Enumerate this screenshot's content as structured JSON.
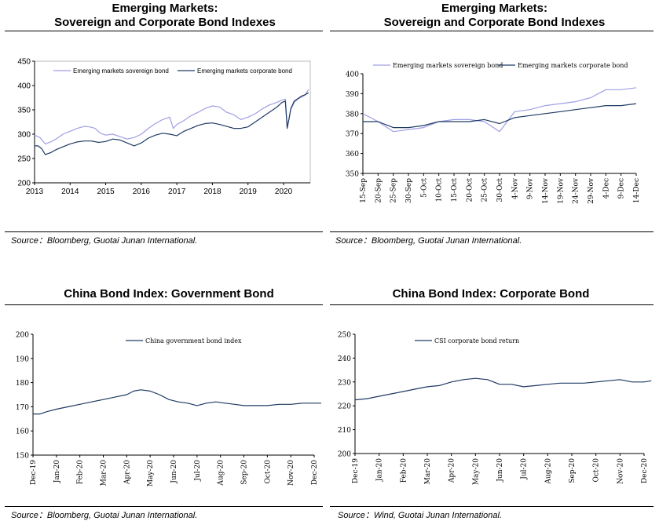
{
  "panels": [
    {
      "title": "Emerging Markets:\nSovereign and Corporate Bond Indexes",
      "source": "Source：Bloomberg, Guotai Junan International.",
      "chart_data": {
        "type": "line",
        "ylim": [
          200,
          450
        ],
        "yticks": [
          200,
          250,
          300,
          350,
          400,
          450
        ],
        "xlim": [
          2013,
          2020.75
        ],
        "xticks": [
          "2013",
          "2014",
          "2015",
          "2016",
          "2017",
          "2018",
          "2019",
          "2020"
        ],
        "xtick_values": [
          2013,
          2014,
          2015,
          2016,
          2017,
          2018,
          2019,
          2020
        ],
        "legend_position": "top",
        "series": [
          {
            "name": "Emerging markets sovereign bond",
            "color": "#9f9fe6",
            "x": [
              2013.0,
              2013.15,
              2013.3,
              2013.45,
              2013.6,
              2013.8,
              2014.0,
              2014.2,
              2014.4,
              2014.55,
              2014.7,
              2014.85,
              2015.0,
              2015.2,
              2015.4,
              2015.6,
              2015.8,
              2016.0,
              2016.2,
              2016.4,
              2016.6,
              2016.8,
              2016.9,
              2017.0,
              2017.2,
              2017.4,
              2017.6,
              2017.8,
              2018.0,
              2018.2,
              2018.4,
              2018.6,
              2018.8,
              2019.0,
              2019.2,
              2019.4,
              2019.6,
              2019.8,
              2019.95,
              2020.05,
              2020.1,
              2020.15,
              2020.2,
              2020.3,
              2020.4,
              2020.5,
              2020.6,
              2020.7
            ],
            "values": [
              298,
              293,
              280,
              284,
              290,
              300,
              306,
              312,
              316,
              315,
              312,
              302,
              298,
              300,
              295,
              290,
              293,
              300,
              312,
              322,
              330,
              335,
              312,
              320,
              328,
              338,
              345,
              353,
              358,
              356,
              345,
              340,
              330,
              335,
              342,
              352,
              360,
              365,
              370,
              372,
              318,
              330,
              350,
              365,
              372,
              376,
              380,
              392
            ]
          },
          {
            "name": "Emerging markets corporate bond",
            "color": "#1f3a63",
            "x": [
              2013.0,
              2013.1,
              2013.2,
              2013.3,
              2013.45,
              2013.6,
              2013.8,
              2014.0,
              2014.2,
              2014.4,
              2014.6,
              2014.8,
              2015.0,
              2015.2,
              2015.4,
              2015.6,
              2015.8,
              2016.0,
              2016.2,
              2016.4,
              2016.6,
              2016.8,
              2017.0,
              2017.2,
              2017.4,
              2017.6,
              2017.8,
              2018.0,
              2018.2,
              2018.4,
              2018.6,
              2018.8,
              2019.0,
              2019.2,
              2019.4,
              2019.6,
              2019.8,
              2019.95,
              2020.05,
              2020.1,
              2020.15,
              2020.2,
              2020.3,
              2020.4,
              2020.5,
              2020.6,
              2020.7
            ],
            "values": [
              276,
              276,
              270,
              258,
              262,
              268,
              274,
              280,
              284,
              286,
              286,
              283,
              285,
              290,
              288,
              282,
              276,
              282,
              292,
              298,
              302,
              300,
              297,
              306,
              312,
              318,
              322,
              323,
              320,
              316,
              312,
              312,
              315,
              325,
              335,
              345,
              355,
              365,
              368,
              312,
              330,
              352,
              368,
              373,
              378,
              381,
              385
            ]
          }
        ]
      }
    },
    {
      "title": "Emerging Markets:\nSovereign and Corporate Bond Indexes",
      "source": "Source：Bloomberg, Guotai Junan International.",
      "chart_data": {
        "type": "line",
        "ylim": [
          350,
          400
        ],
        "yticks": [
          350,
          360,
          370,
          380,
          390,
          400
        ],
        "categories": [
          "15-Sep",
          "20-Sep",
          "25-Sep",
          "30-Sep",
          "5-Oct",
          "10-Oct",
          "15-Oct",
          "20-Oct",
          "25-Oct",
          "30-Oct",
          "4-Nov",
          "9-Nov",
          "14-Nov",
          "19-Nov",
          "24-Nov",
          "29-Nov",
          "4-Dec",
          "9-Dec",
          "14-Dec"
        ],
        "legend_position": "top",
        "series": [
          {
            "name": "Emerging markets sovereign bond",
            "color": "#9f9fe6",
            "values": [
              380,
              376,
              371,
              372,
              373,
              376,
              377,
              377,
              376,
              371,
              381,
              382,
              384,
              385,
              386,
              388,
              392,
              392,
              393
            ]
          },
          {
            "name": "Emerging markets corporate bond",
            "color": "#1f3a63",
            "values": [
              376,
              376,
              373,
              373,
              374,
              376,
              376,
              376,
              377,
              375,
              378,
              379,
              380,
              381,
              382,
              383,
              384,
              384,
              385
            ]
          }
        ]
      }
    },
    {
      "title": "China Bond Index: Government Bond",
      "source": "Source：Bloomberg, Guotai Junan International.",
      "chart_data": {
        "type": "line",
        "ylim": [
          150,
          200
        ],
        "yticks": [
          150,
          160,
          170,
          180,
          190,
          200
        ],
        "categories": [
          "Dec-19",
          "Jan-20",
          "Feb-20",
          "Mar-20",
          "Apr-20",
          "May-20",
          "Jun-20",
          "Jul-20",
          "Aug-20",
          "Sep-20",
          "Oct-20",
          "Nov-20",
          "Dec-20"
        ],
        "legend_position": "top",
        "series": [
          {
            "name": "China government bond index",
            "color": "#1f3a63",
            "x": [
              0,
              0.3,
              0.6,
              1.0,
              1.5,
              2.0,
              2.5,
              3.0,
              3.5,
              4.0,
              4.3,
              4.6,
              5.0,
              5.4,
              5.8,
              6.2,
              6.6,
              7.0,
              7.4,
              7.8,
              8.2,
              8.6,
              9.0,
              9.5,
              10.0,
              10.5,
              11.0,
              11.5,
              12.0,
              12.3
            ],
            "values": [
              167,
              167,
              168,
              169,
              170,
              171,
              172,
              173,
              174,
              175,
              176.5,
              177,
              176.5,
              175,
              173,
              172,
              171.5,
              170.5,
              171.5,
              172,
              171.5,
              171,
              170.5,
              170.5,
              170.5,
              171,
              171,
              171.5,
              171.5,
              171.5
            ]
          }
        ]
      }
    },
    {
      "title": "China Bond Index: Corporate Bond",
      "source": "Source：Wind, Guotai Junan International.",
      "chart_data": {
        "type": "line",
        "ylim": [
          200,
          250
        ],
        "yticks": [
          200,
          210,
          220,
          230,
          240,
          250
        ],
        "categories": [
          "Dec-19",
          "Jan-20",
          "Feb-20",
          "Mar-20",
          "Apr-20",
          "May-20",
          "Jun-20",
          "Jul-20",
          "Aug-20",
          "Sep-20",
          "Oct-20",
          "Nov-20",
          "Dec-20"
        ],
        "legend_position": "top",
        "series": [
          {
            "name": "CSI corporate bond return",
            "color": "#1f3a63",
            "x": [
              0,
              0.5,
              1.0,
              1.5,
              2.0,
              2.5,
              3.0,
              3.5,
              4.0,
              4.5,
              5.0,
              5.5,
              6.0,
              6.5,
              7.0,
              7.5,
              8.0,
              8.5,
              9.0,
              9.5,
              10.0,
              10.5,
              11.0,
              11.5,
              12.0,
              12.3
            ],
            "values": [
              222.5,
              223,
              224,
              225,
              226,
              227,
              228,
              228.5,
              230,
              231,
              231.5,
              231,
              229,
              229,
              228,
              228.5,
              229,
              229.5,
              229.5,
              229.5,
              230,
              230.5,
              231,
              230,
              230,
              230.5
            ]
          }
        ]
      }
    }
  ]
}
